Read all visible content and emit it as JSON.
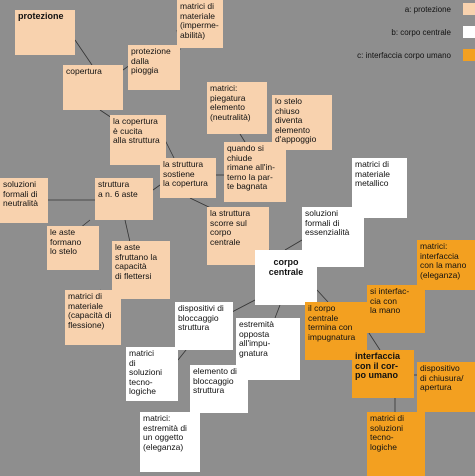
{
  "legend": [
    "a: protezione",
    "b: corpo centrale",
    "c: interfaccia corpo umano"
  ],
  "nodes": [
    "protezione",
    "matrici di\nmateriale\n(imperme-\nabilità)",
    "protezione\ndalla\npioggia",
    "copertura",
    "matrici:\npiegatura\nelemento\n(neutralità)",
    "lo stelo\nchiuso\ndiventa\nelemento\nd'appoggio",
    "la copertura\nè cucita\nalla struttura",
    "quando si\nchiude\nrimane all'in-\nterno la par-\nte bagnata",
    "la struttura\nsostiene\nla copertura",
    "soluzioni\nformali di\nneutralità",
    "struttura\na n. 6 aste",
    "le aste\nformano\nlo stelo",
    "la struttura\nscorre sul\ncorpo\ncentrale",
    "le aste\nsfruttano la\ncapacità\ndi flettersi",
    "matrici di\nmateriale\n(capacità di\nflessione)",
    "matrici di\nmateriale\nmetallico",
    "soluzioni\nformali di\nessenzialità",
    "corpo\ncentrale",
    "dispositivi di\nbloccaggio\nstruttura",
    "estremità\nopposta\nall'impu-\ngnatura",
    "matrici\ndi\nsoluzioni\ntecno-\nlogiche",
    "elemento di\nbloccaggio\nstruttura",
    "matrici:\nestremità di\nun oggetto\n(eleganza)",
    "matrici:\ninterfaccia\ncon la mano\n(eleganza)",
    "si interfac-\ncia con\nla mano",
    "il corpo\ncentrale\ntermina con\nimpugnatura",
    "interfaccia\ncon il cor-\npo umano",
    "dispositivo\ndi chiusura/\napertura",
    "matrici di\nsoluzioni\ntecno-\nlogiche"
  ]
}
